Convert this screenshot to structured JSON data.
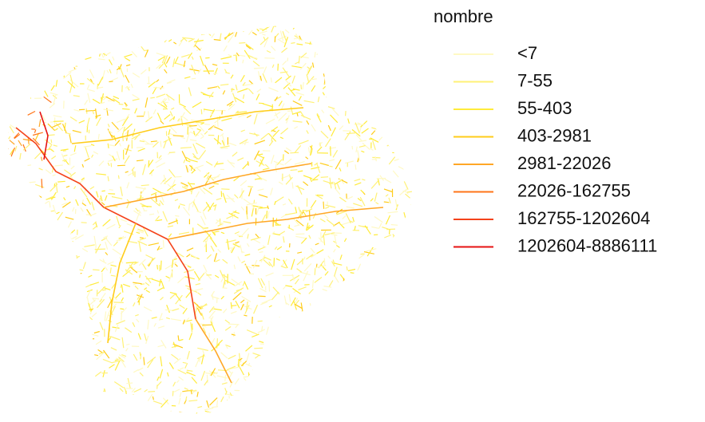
{
  "legend": {
    "title": "nombre",
    "items": [
      {
        "label": "<7",
        "color": "#fff9c4"
      },
      {
        "label": "7-55",
        "color": "#fff176"
      },
      {
        "label": "55-403",
        "color": "#ffeb3b"
      },
      {
        "label": "403-2981",
        "color": "#ffcc1a"
      },
      {
        "label": "2981-22026",
        "color": "#ffa726"
      },
      {
        "label": "22026-162755",
        "color": "#ff7518"
      },
      {
        "label": "162755-1202604",
        "color": "#f4421a"
      },
      {
        "label": "1202604-8886111",
        "color": "#e61212"
      }
    ]
  }
}
